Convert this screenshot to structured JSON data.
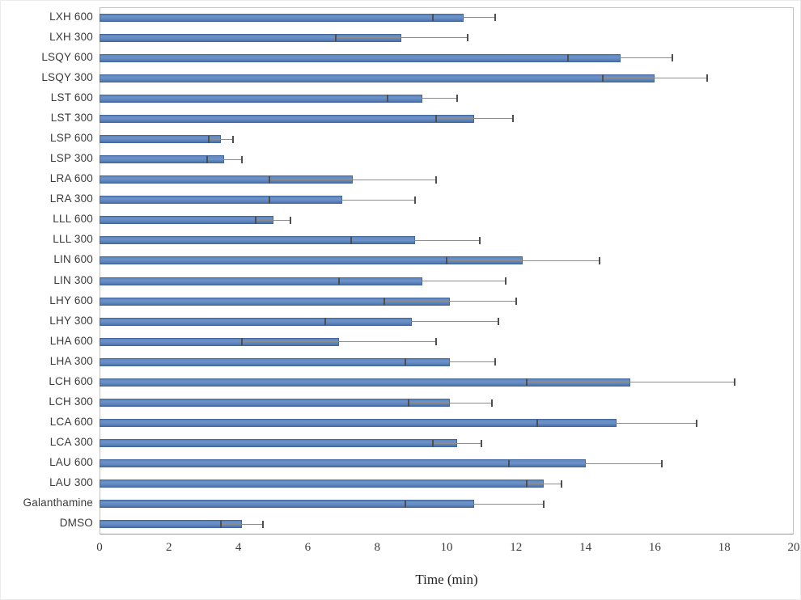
{
  "chart_data": {
    "type": "bar",
    "orientation": "horizontal",
    "title": "",
    "xlabel": "Time (min)",
    "ylabel": "",
    "xlim": [
      0,
      20
    ],
    "xticks": [
      0,
      2,
      4,
      6,
      8,
      10,
      12,
      14,
      16,
      18,
      20
    ],
    "legend": "none",
    "grid": false,
    "bar_color": "#5b84bc",
    "bar_border_color": "#44689e",
    "error_line_color": "#8c8c8c",
    "error_cap_color": "#4f4f4f",
    "categories": [
      "LXH 600",
      "LXH 300",
      "LSQY 600",
      "LSQY 300",
      "LST 600",
      "LST 300",
      "LSP 600",
      "LSP 300",
      "LRA 600",
      "LRA 300",
      "LLL 600",
      "LLL 300",
      "LIN 600",
      "LIN 300",
      "LHY 600",
      "LHY 300",
      "LHA 600",
      "LHA 300",
      "LCH 600",
      "LCH 300",
      "LCA 600",
      "LCA 300",
      "LAU 600",
      "LAU 300",
      "Galanthamine",
      "DMSO"
    ],
    "values": [
      10.5,
      8.7,
      15.0,
      16.0,
      9.3,
      10.8,
      3.5,
      3.6,
      7.3,
      7.0,
      5.0,
      9.1,
      12.2,
      9.3,
      10.1,
      9.0,
      6.9,
      10.1,
      15.3,
      10.1,
      14.9,
      10.3,
      14.0,
      12.8,
      10.8,
      4.1
    ],
    "errors_plus": [
      0.9,
      1.9,
      1.5,
      1.5,
      1.0,
      1.1,
      0.35,
      0.5,
      2.4,
      2.1,
      0.5,
      1.85,
      2.2,
      2.4,
      1.9,
      2.5,
      2.8,
      1.3,
      3.0,
      1.2,
      2.3,
      0.7,
      2.2,
      0.5,
      2.0,
      0.6
    ]
  }
}
